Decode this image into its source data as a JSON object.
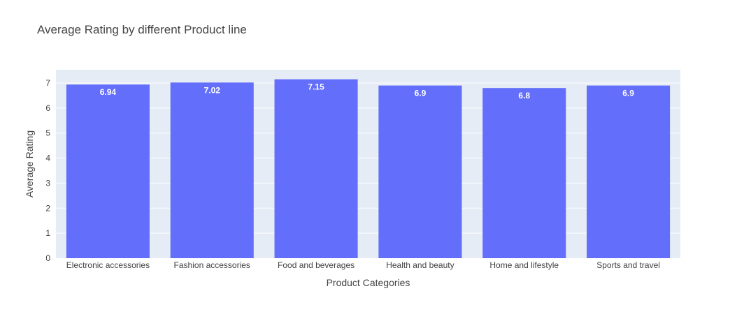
{
  "chart_data": {
    "type": "bar",
    "title": "Average Rating by different Product line",
    "xlabel": "Product Categories",
    "ylabel": "Average Rating",
    "categories": [
      "Electronic accessories",
      "Fashion accessories",
      "Food and beverages",
      "Health and beauty",
      "Home and lifestyle",
      "Sports and travel"
    ],
    "values": [
      6.94,
      7.02,
      7.15,
      6.9,
      6.8,
      6.9
    ],
    "value_labels": [
      "6.94",
      "7.02",
      "7.15",
      "6.9",
      "6.8",
      "6.9"
    ],
    "yticks": [
      0,
      1,
      2,
      3,
      4,
      5,
      6,
      7
    ],
    "ylim": [
      0,
      7.53
    ],
    "grid": true,
    "bar_color": "#636efa",
    "plot_background": "#e5ecf6",
    "label_color": "#ffffff"
  }
}
